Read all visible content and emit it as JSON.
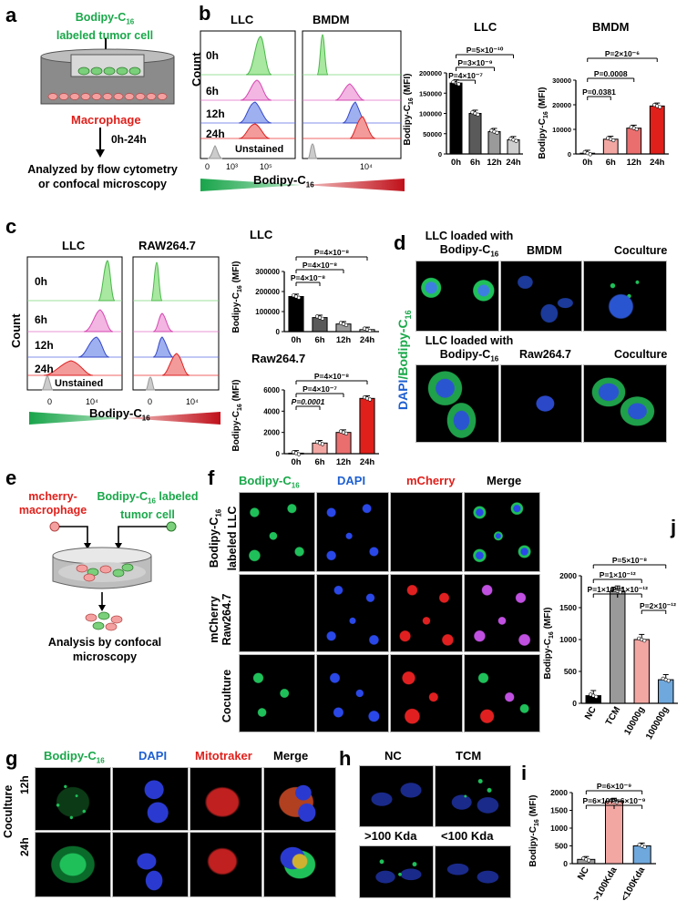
{
  "panel_labels": {
    "a": "a",
    "b": "b",
    "c": "c",
    "d": "d",
    "e": "e",
    "f": "f",
    "g": "g",
    "h": "h",
    "i": "i",
    "j": "j"
  },
  "panel_a": {
    "top_label_line1": "Bodipy-C",
    "top_label_sub": "16",
    "top_label_line2": "labeled tumor cell",
    "macrophage": "Macrophage",
    "time": "0h-24h",
    "analysis_line1": "Analyzed by flow cytometry",
    "analysis_line2": "or confocal microscopy"
  },
  "panel_b": {
    "histo_titles": [
      "LLC",
      "BMDM"
    ],
    "count_label": "Count",
    "rows": [
      "0h",
      "6h",
      "12h",
      "24h",
      "Unstained"
    ],
    "ticks_left": [
      "0",
      "10³",
      "10⁵"
    ],
    "tick_right": "10⁴",
    "xaxis": "Bodipy-C",
    "xaxis_sub": "16",
    "bar_titles": [
      "LLC",
      "BMDM"
    ],
    "ylabel": "Bodipy-C",
    "ylabel_sub": "16",
    "ylabel_tail": " (MFI)",
    "llc_pvals": [
      "P=4×10⁻⁷",
      "P=3×10⁻⁹",
      "P=5×10⁻¹⁰"
    ],
    "bmdm_pvals": [
      "P=0.0381",
      "P=0.0008",
      "P=2×10⁻⁶"
    ],
    "llc_yticks": [
      "0",
      "50000",
      "100000",
      "150000",
      "200000"
    ],
    "bmdm_yticks": [
      "0",
      "10000",
      "20000",
      "30000"
    ],
    "categories": [
      "0h",
      "6h",
      "12h",
      "24h"
    ]
  },
  "panel_c": {
    "histo_titles": [
      "LLC",
      "RAW264.7"
    ],
    "count_label": "Count",
    "rows": [
      "0h",
      "6h",
      "12h",
      "24h",
      "Unstained"
    ],
    "ticks_left": [
      "0",
      "10⁴"
    ],
    "tick_right_a": "0",
    "tick_right_b": "10⁴",
    "xaxis": "Bodipy-C",
    "xaxis_sub": "16",
    "bar_titles": [
      "LLC",
      "Raw264.7"
    ],
    "llc_pvals": [
      "P=4×10⁻⁸",
      "P=4×10⁻⁸",
      "P=4×10⁻⁸"
    ],
    "raw_pvals": [
      "P=0.0001",
      "P=4×10⁻⁷",
      "P=4×10⁻⁸"
    ],
    "llc_yticks": [
      "0",
      "100000",
      "200000",
      "300000"
    ],
    "raw_yticks": [
      "0",
      "2000",
      "4000",
      "6000"
    ],
    "categories": [
      "0h",
      "6h",
      "12h",
      "24h"
    ]
  },
  "panel_d": {
    "row1_headers": [
      "LLC loaded with",
      "Bodipy-C",
      "BMDM",
      "Coculture"
    ],
    "row2_headers": [
      "LLC loaded with",
      "Bodipy-C",
      "Raw264.7",
      "Coculture"
    ],
    "side_label_dapi": "DAPI",
    "side_label_sep": "/",
    "side_label_bodipy": "Bodipy-C",
    "sub16": "16"
  },
  "panel_e": {
    "left_label_line1": "mcherry-",
    "left_label_line2": "macrophage",
    "right_label_line1": "Bodipy-C",
    "right_label_sub": "16",
    "right_label_tail": " labeled",
    "right_label_line2": "tumor cell",
    "analysis_line1": "Analysis by  confocal",
    "analysis_line2": "microscopy"
  },
  "panel_f": {
    "col_headers": [
      "Bodipy-C",
      "DAPI",
      "mCherry",
      "Merge"
    ],
    "sub16": "16",
    "row_labels": [
      {
        "line1": "Bodipy-C",
        "sub": "16",
        "line2": "labeled LLC"
      },
      {
        "line1": "mCherry",
        "line2": "Raw264.7"
      },
      {
        "line1": "Coculture"
      }
    ]
  },
  "panel_g": {
    "col_headers": [
      "Bodipy-C",
      "DAPI",
      "Mitotraker",
      "Merge"
    ],
    "sub16": "16",
    "side": "Coculture",
    "rows": [
      "12h",
      "24h"
    ]
  },
  "panel_h": {
    "headers": [
      "NC",
      "TCM",
      ">100 Kda",
      "<100 Kda"
    ]
  },
  "panel_i": {
    "ylabel": "Bodipy-C",
    "ylabel_sub": "16",
    "ylabel_tail": " (MFI)",
    "yticks": [
      "0",
      "500",
      "1000",
      "1500",
      "2000"
    ],
    "categories": [
      "NC",
      ">100Kda",
      "<100Kda"
    ],
    "pvals": [
      "P=6×10⁻⁹",
      "P=6×10⁻⁹",
      "P=6×10⁻⁹"
    ]
  },
  "panel_j": {
    "ylabel": "Bodipy-C",
    "ylabel_sub": "16",
    "ylabel_tail": " (MFI)",
    "yticks": [
      "0",
      "500",
      "1000",
      "1500",
      "2000"
    ],
    "categories": [
      "NC",
      "TCM",
      "10000g",
      "100000g"
    ],
    "pvals": [
      "P=5×10⁻⁸",
      "P=1×10⁻¹²",
      "P=1×10⁻¹²",
      "P=1×10⁻¹²",
      "P=2×10⁻¹²"
    ]
  },
  "chart_data": [
    {
      "type": "bar",
      "title": "LLC",
      "categories": [
        "0h",
        "6h",
        "12h",
        "24h"
      ],
      "values": [
        175000,
        100000,
        55000,
        35000
      ],
      "ylim": [
        0,
        200000
      ],
      "colors": [
        "#000000",
        "#5a5a5a",
        "#9a9a9a",
        "#cfcfcf"
      ]
    },
    {
      "type": "bar",
      "title": "BMDM",
      "categories": [
        "0h",
        "6h",
        "12h",
        "24h"
      ],
      "values": [
        300,
        6000,
        10500,
        19500
      ],
      "ylim": [
        0,
        30000
      ],
      "colors": [
        "#f9d3d0",
        "#f3a7a3",
        "#ea6e6e",
        "#e0201b"
      ]
    },
    {
      "type": "bar",
      "title": "LLC",
      "categories": [
        "0h",
        "6h",
        "12h",
        "24h"
      ],
      "values": [
        175000,
        70000,
        38000,
        10000
      ],
      "ylim": [
        0,
        300000
      ],
      "colors": [
        "#000000",
        "#5a5a5a",
        "#9a9a9a",
        "#cfcfcf"
      ]
    },
    {
      "type": "bar",
      "title": "Raw264.7",
      "categories": [
        "0h",
        "6h",
        "12h",
        "24h"
      ],
      "values": [
        50,
        1000,
        2000,
        5200
      ],
      "ylim": [
        0,
        6000
      ],
      "colors": [
        "#f9d3d0",
        "#f3a7a3",
        "#ea6e6e",
        "#e0201b"
      ]
    },
    {
      "type": "bar",
      "categories": [
        "NC",
        "TCM",
        "10000g",
        "100000g"
      ],
      "values": [
        120,
        1760,
        1000,
        370
      ],
      "ylim": [
        0,
        2000
      ],
      "colors": [
        "#000000",
        "#9a9a9a",
        "#f3a7a3",
        "#6fa8dc"
      ]
    },
    {
      "type": "bar",
      "categories": [
        "NC",
        ">100Kda",
        "<100Kda"
      ],
      "values": [
        120,
        1760,
        500
      ],
      "ylim": [
        0,
        2000
      ],
      "colors": [
        "#9a9a9a",
        "#f3a7a3",
        "#6fa8dc"
      ]
    }
  ]
}
